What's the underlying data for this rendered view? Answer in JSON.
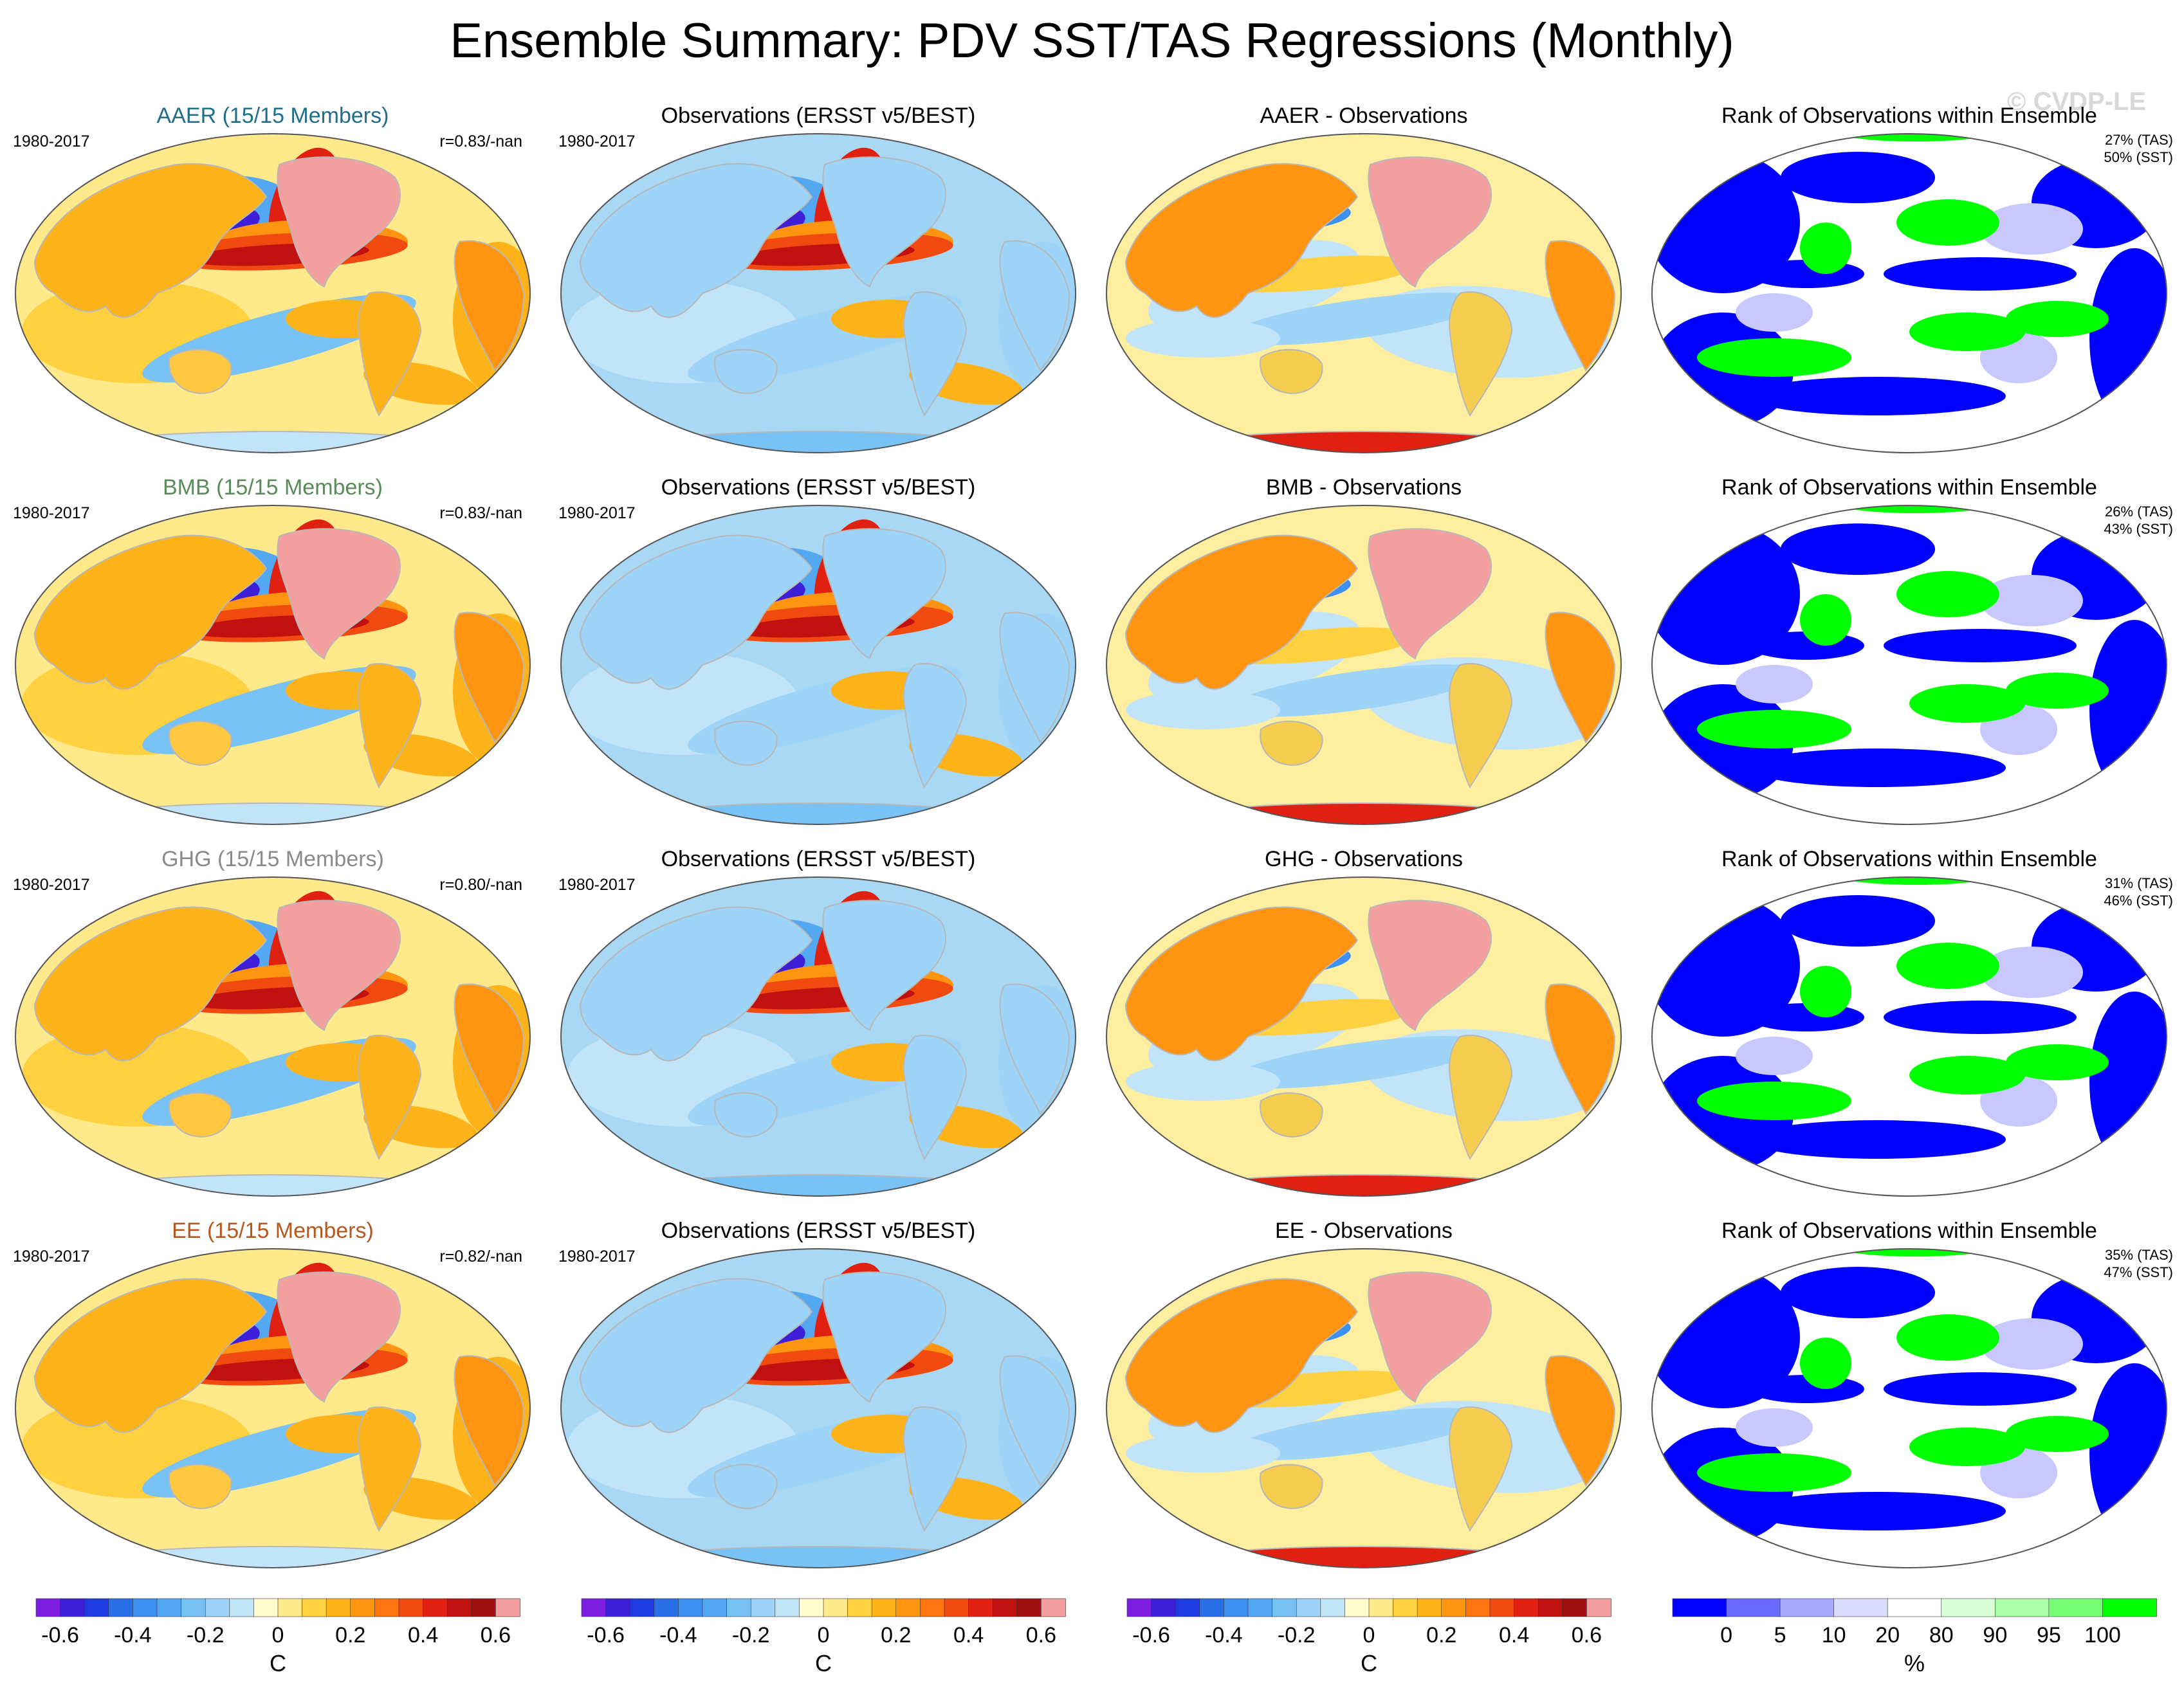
{
  "title": "Ensemble Summary: PDV SST/TAS Regressions (Monthly)",
  "watermark": "© CVDP-LE",
  "rows": [
    {
      "model": {
        "title": "AAER (15/15 Members)",
        "color": "#1f6f8b",
        "period": "1980-2017",
        "corr": "r=0.83/-nan"
      },
      "obs": {
        "title": "Observations (ERSST v5/BEST)",
        "period": "1980-2017"
      },
      "diff": {
        "title": "AAER - Observations"
      },
      "rank": {
        "title": "Rank of Observations within Ensemble",
        "tas": "27% (TAS)",
        "sst": "50% (SST)"
      }
    },
    {
      "model": {
        "title": "BMB (15/15 Members)",
        "color": "#5b8a5b",
        "period": "1980-2017",
        "corr": "r=0.83/-nan"
      },
      "obs": {
        "title": "Observations (ERSST v5/BEST)",
        "period": "1980-2017"
      },
      "diff": {
        "title": "BMB - Observations"
      },
      "rank": {
        "title": "Rank of Observations within Ensemble",
        "tas": "26% (TAS)",
        "sst": "43% (SST)"
      }
    },
    {
      "model": {
        "title": "GHG (15/15 Members)",
        "color": "#8a8a8a",
        "period": "1980-2017",
        "corr": "r=0.80/-nan"
      },
      "obs": {
        "title": "Observations (ERSST v5/BEST)",
        "period": "1980-2017"
      },
      "diff": {
        "title": "GHG - Observations"
      },
      "rank": {
        "title": "Rank of Observations within Ensemble",
        "tas": "31% (TAS)",
        "sst": "46% (SST)"
      }
    },
    {
      "model": {
        "title": "EE (15/15 Members)",
        "color": "#b5571f",
        "period": "1980-2017",
        "corr": "r=0.82/-nan"
      },
      "obs": {
        "title": "Observations (ERSST v5/BEST)",
        "period": "1980-2017"
      },
      "diff": {
        "title": "EE - Observations"
      },
      "rank": {
        "title": "Rank of Observations within Ensemble",
        "tas": "35% (TAS)",
        "sst": "47% (SST)"
      }
    }
  ],
  "colorbars": {
    "regression": {
      "unit": "C",
      "ticks": [
        "-0.6",
        "-0.4",
        "-0.2",
        "0",
        "0.2",
        "0.4",
        "0.6"
      ],
      "colors": [
        "#7d1fe0",
        "#3c1fd6",
        "#1f3ae0",
        "#2a6fe8",
        "#3d8ff0",
        "#54a8f2",
        "#78c2f5",
        "#9ed4f7",
        "#c2e4f8",
        "#fffcd0",
        "#ffe98a",
        "#ffd040",
        "#ffb31a",
        "#ff9410",
        "#ff7410",
        "#f04a10",
        "#e02010",
        "#c01010",
        "#a01010",
        "#f5a0a0"
      ]
    },
    "rank": {
      "unit": "%",
      "ticks": [
        "0",
        "5",
        "10",
        "20",
        "80",
        "90",
        "95",
        "100"
      ],
      "colors": [
        "#0000ff",
        "#6a6aff",
        "#a8a8ff",
        "#dcdcff",
        "#ffffff",
        "#d8ffd8",
        "#a8ffa8",
        "#78ff78",
        "#00ff00"
      ]
    }
  }
}
